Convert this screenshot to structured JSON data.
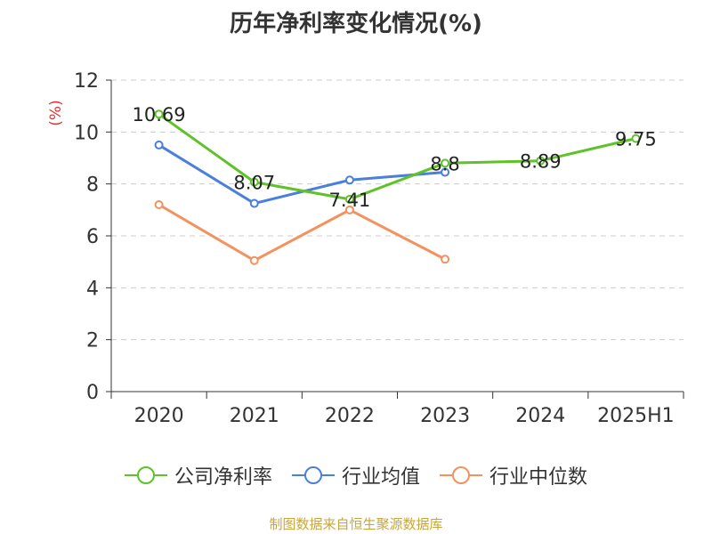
{
  "title": "历年净利率变化情况(%)",
  "source": "制图数据来自恒生聚源数据库",
  "colors": {
    "company": "#5ec228",
    "industry_avg": "#4a7fdb",
    "industry_median": "#f5915c",
    "ylabel": "#e03030",
    "source": "#c8a53c"
  },
  "chart_data": {
    "type": "line",
    "title": "历年净利率变化情况(%)",
    "ylabel": "(%)",
    "xlabel": "",
    "categories": [
      "2020",
      "2021",
      "2022",
      "2023",
      "2024",
      "2025H1"
    ],
    "yticks": [
      "0",
      "2",
      "4",
      "6",
      "8",
      "10",
      "12"
    ],
    "ylim": [
      0,
      12
    ],
    "grid": true,
    "legend_position": "bottom",
    "series": [
      {
        "name": "公司净利率",
        "color": "#5ec228",
        "values": [
          10.69,
          8.07,
          7.41,
          8.8,
          8.89,
          9.75
        ],
        "labels": [
          "10.69",
          "8.07",
          "7.41",
          "8.8",
          "8.89",
          "9.75"
        ]
      },
      {
        "name": "行业均值",
        "color": "#4a7fdb",
        "values": [
          9.5,
          7.25,
          8.15,
          8.45,
          null,
          null
        ]
      },
      {
        "name": "行业中位数",
        "color": "#f5915c",
        "values": [
          7.2,
          5.05,
          7.0,
          5.1,
          null,
          null
        ]
      }
    ]
  }
}
